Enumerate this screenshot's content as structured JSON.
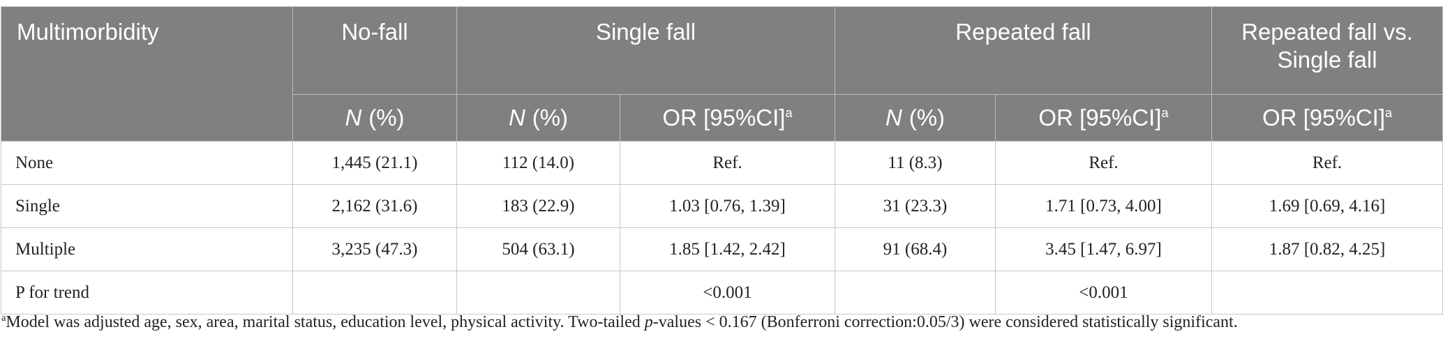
{
  "table": {
    "header": {
      "row1": [
        "Multimorbidity",
        "No-fall",
        "Single fall",
        "Repeated fall",
        "Repeated fall vs. Single fall"
      ],
      "row2": [
        {
          "italic": "N",
          "text": "(%)"
        },
        {
          "italic": "N",
          "text": "(%)"
        },
        {
          "text": "OR [95%CI]",
          "sup": "a"
        },
        {
          "italic": "N",
          "text": "(%)"
        },
        {
          "text": "OR [95%CI]",
          "sup": "a"
        },
        {
          "text": "OR [95%CI]",
          "sup": "a"
        }
      ]
    },
    "rows": [
      [
        "None",
        "1,445 (21.1)",
        "112 (14.0)",
        "Ref.",
        "11 (8.3)",
        "Ref.",
        "Ref."
      ],
      [
        "Single",
        "2,162 (31.6)",
        "183 (22.9)",
        "1.03 [0.76, 1.39]",
        "31 (23.3)",
        "1.71 [0.73, 4.00]",
        "1.69 [0.69, 4.16]"
      ],
      [
        "Multiple",
        "3,235 (47.3)",
        "504 (63.1)",
        "1.85 [1.42, 2.42]",
        "91 (68.4)",
        "3.45 [1.47, 6.97]",
        "1.87 [0.82, 4.25]"
      ],
      [
        "P for trend",
        null,
        null,
        "<0.001",
        null,
        "<0.001",
        null
      ]
    ]
  },
  "footnote": {
    "sup": "a",
    "text1": "Model was adjusted age, sex, area, marital status, education level, physical activity. Two-tailed ",
    "italic": "p",
    "text2": "-values < 0.167 (Bonferroni correction:0.05/3) were considered statistically significant."
  }
}
